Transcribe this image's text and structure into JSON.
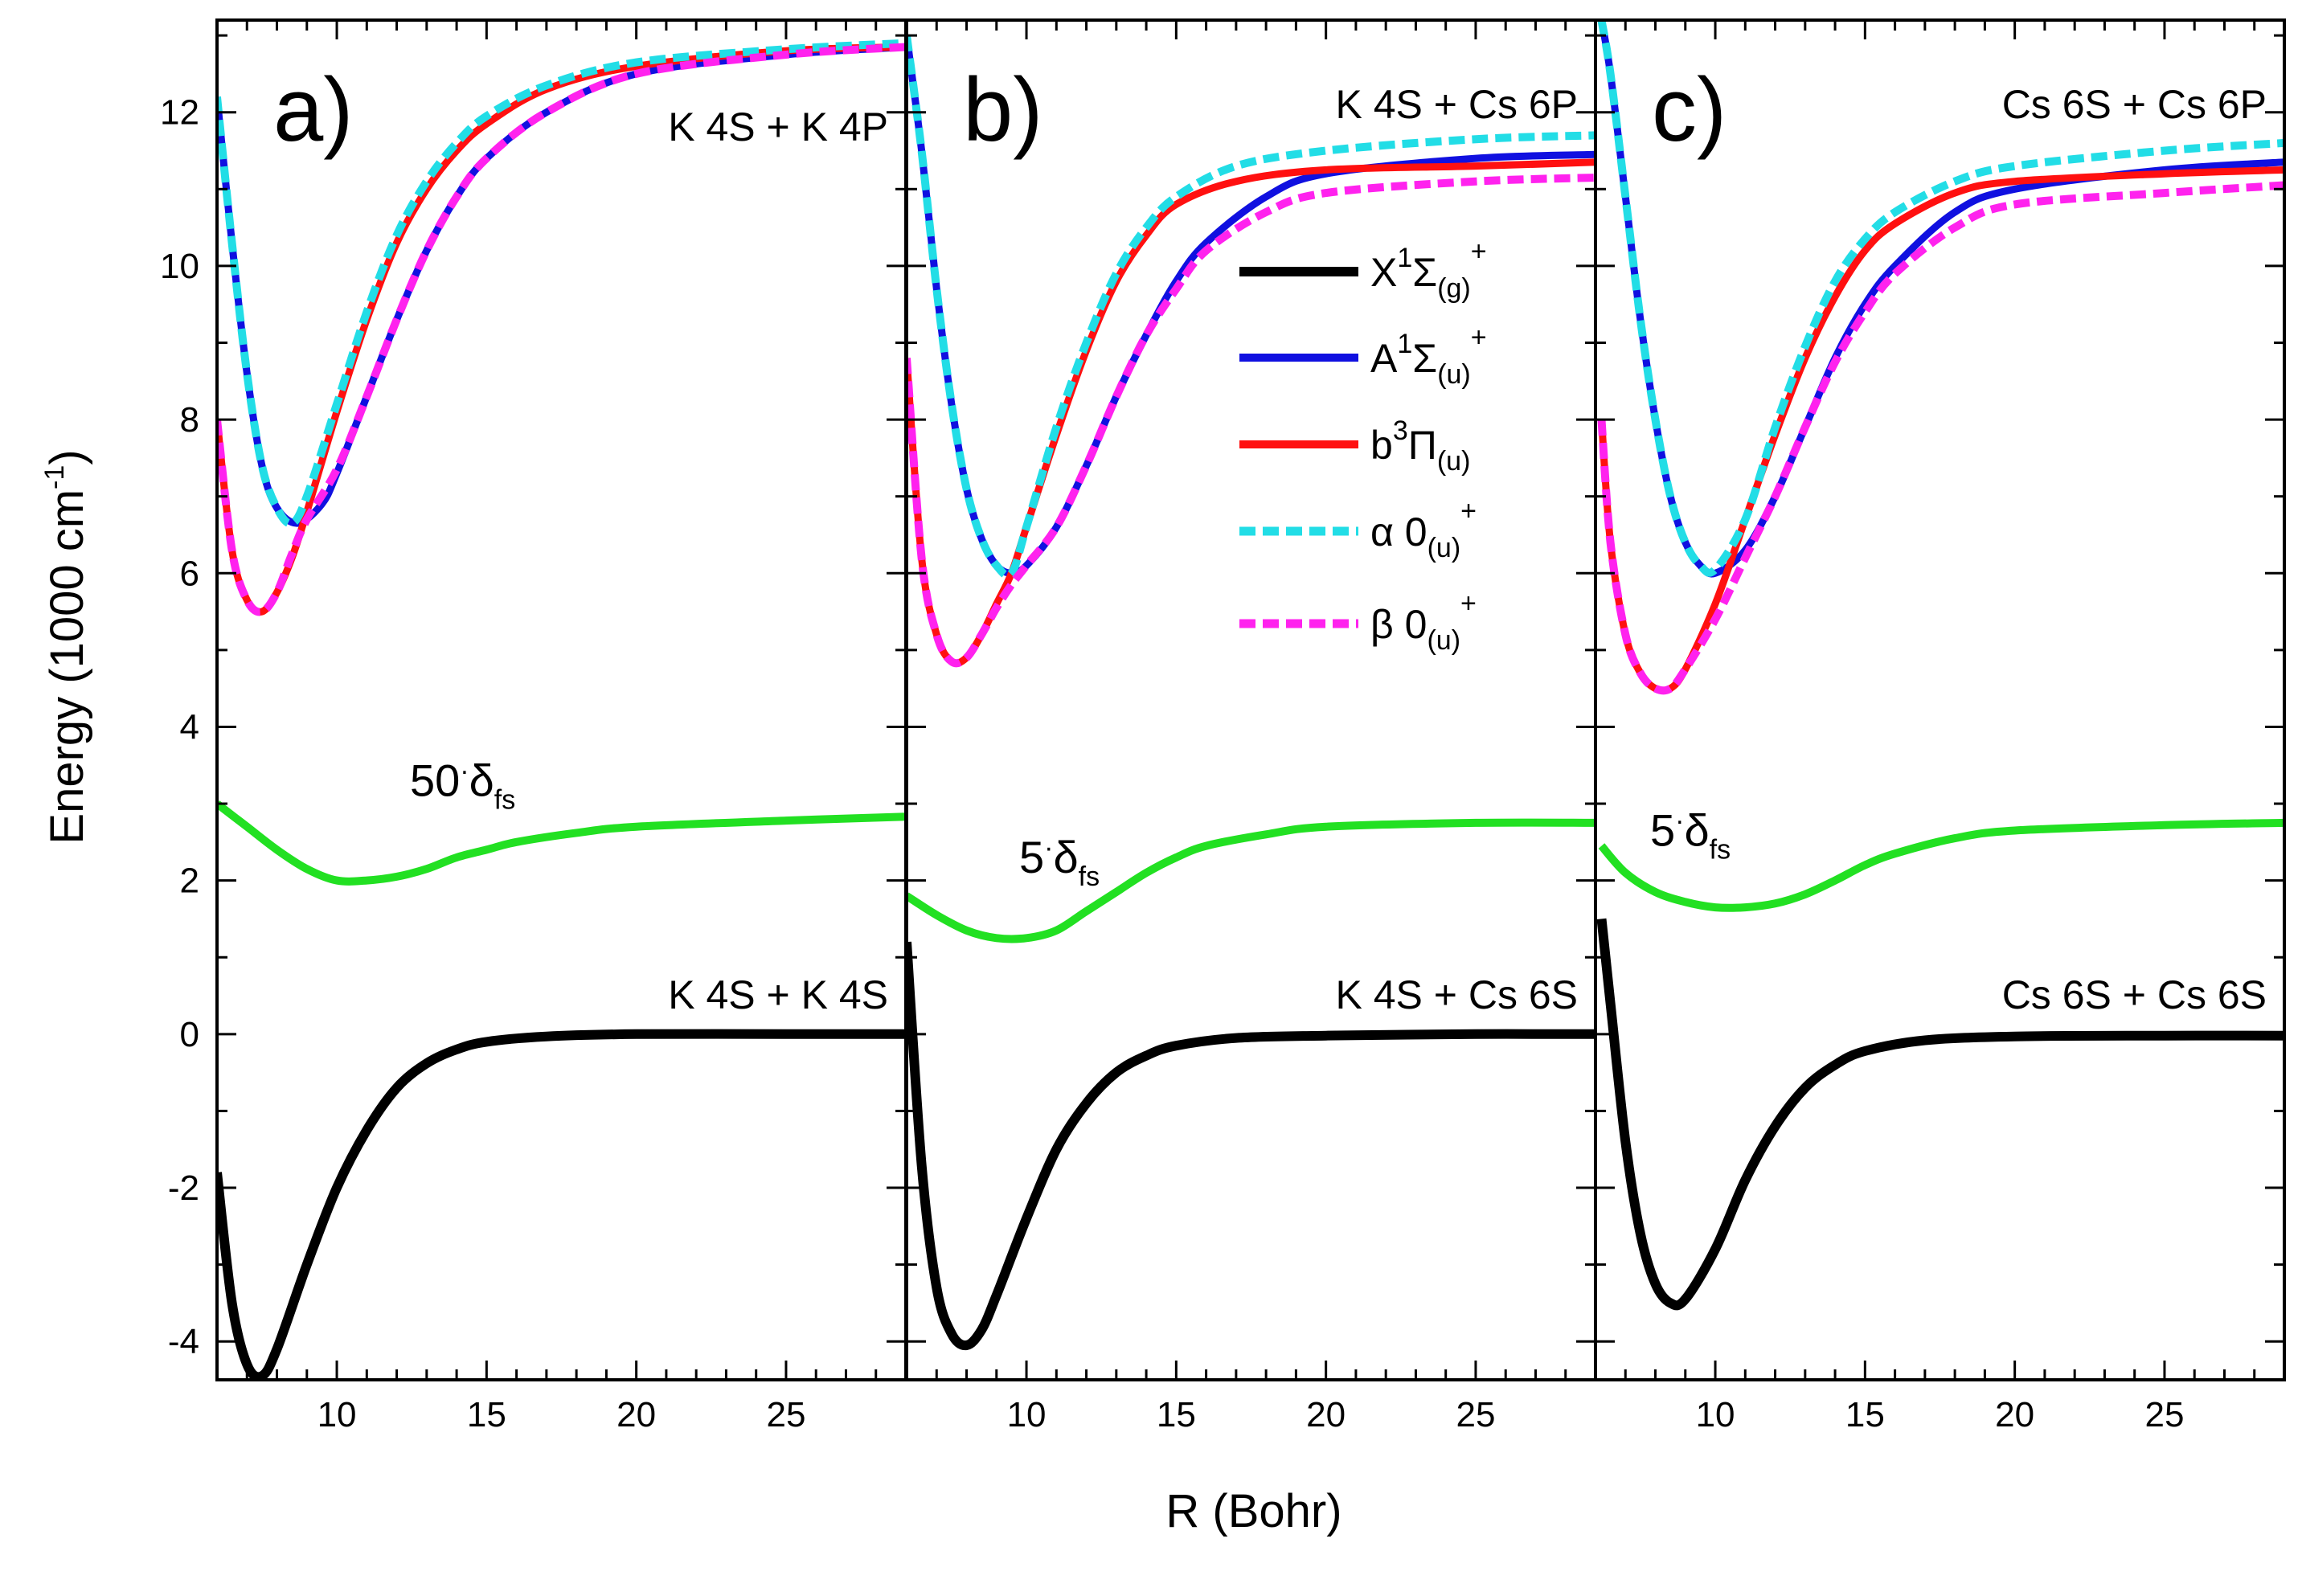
{
  "chart_data": {
    "type": "line",
    "x_axis": {
      "label": "R (Bohr)",
      "range": [
        6,
        29
      ],
      "major_ticks": [
        10,
        15,
        20,
        25
      ],
      "minor_step": 1
    },
    "y_axis": {
      "label_main": "Energy (1000 cm",
      "label_sup": "-1",
      "label_close": ")",
      "range": [
        -4.5,
        13.2
      ],
      "major_ticks": [
        -4,
        -2,
        0,
        2,
        4,
        6,
        8,
        10,
        12
      ],
      "tick_labels": [
        "-4",
        "-2",
        "0",
        "2",
        "4",
        "6",
        "8",
        "10",
        "12"
      ]
    },
    "legend": {
      "placement": "inside panel b, upper-middle",
      "entries": [
        {
          "key": "X",
          "main": "X",
          "sup1": "1",
          "sym": "Σ",
          "sub": "(g)",
          "sup2": "+",
          "color": "#000000",
          "dash": "solid"
        },
        {
          "key": "A",
          "main": "A",
          "sup1": "1",
          "sym": "Σ",
          "sub": "(u)",
          "sup2": "+",
          "color": "#1010e0",
          "dash": "solid"
        },
        {
          "key": "b",
          "main": "b",
          "sup1": "3",
          "sym": "Π",
          "sub": "(u)",
          "sup2": "",
          "color": "#ff1010",
          "dash": "solid"
        },
        {
          "key": "alpha",
          "main": "α 0",
          "sup1": "",
          "sym": "",
          "sub": "(u)",
          "sup2": "+",
          "color": "#22dde6",
          "dash": "dash"
        },
        {
          "key": "beta",
          "main": "β 0",
          "sup1": "",
          "sym": "",
          "sub": "(u)",
          "sup2": "+",
          "color": "#ff22ee",
          "dash": "dash"
        }
      ]
    },
    "panels": [
      {
        "id": "a",
        "letter": "a)",
        "upper_asymptote": "K 4S + K 4P",
        "lower_asymptote": "K 4S + K 4S",
        "fs_prefix": "50",
        "fs_symbol": "δ",
        "fs_sub": "fs",
        "curves": {
          "X": {
            "x": [
              6,
              6.5,
              7,
              7.5,
              8,
              9,
              10,
              11,
              12,
              13,
              14,
              15,
              17,
              20,
              25,
              29
            ],
            "y": [
              -1.8,
              -3.5,
              -4.3,
              -4.45,
              -4.1,
              -3.0,
              -2.0,
              -1.25,
              -0.7,
              -0.38,
              -0.2,
              -0.1,
              -0.03,
              0,
              0,
              0
            ]
          },
          "A": {
            "x": [
              6,
              6.5,
              7,
              7.5,
              8,
              8.7,
              9.5,
              10,
              11,
              12,
              13,
              14,
              15,
              17,
              20,
              25,
              29
            ],
            "y": [
              12.2,
              10.3,
              8.6,
              7.4,
              6.85,
              6.65,
              6.9,
              7.3,
              8.3,
              9.3,
              10.2,
              10.9,
              11.4,
              12.0,
              12.5,
              12.75,
              12.85
            ]
          },
          "b": {
            "x": [
              6,
              6.5,
              7,
              7.5,
              8,
              8.5,
              9,
              10,
              11,
              12,
              13,
              14,
              15,
              17,
              20,
              25,
              29
            ],
            "y": [
              8.0,
              6.3,
              5.65,
              5.5,
              5.75,
              6.2,
              6.8,
              8.1,
              9.3,
              10.3,
              11.0,
              11.5,
              11.85,
              12.3,
              12.6,
              12.8,
              12.85
            ]
          },
          "alpha": {
            "x": [
              6,
              6.5,
              7,
              7.5,
              8,
              8.5,
              9,
              10,
              11,
              12,
              13,
              14,
              15,
              17,
              20,
              25,
              29
            ],
            "y": [
              12.2,
              10.3,
              8.6,
              7.4,
              6.85,
              6.65,
              7.0,
              8.2,
              9.4,
              10.4,
              11.1,
              11.6,
              11.95,
              12.35,
              12.65,
              12.82,
              12.9
            ]
          },
          "beta": {
            "x": [
              6,
              6.5,
              7,
              7.5,
              8,
              8.5,
              9,
              10,
              11,
              12,
              13,
              14,
              15,
              17,
              20,
              25,
              29
            ],
            "y": [
              8.0,
              6.3,
              5.65,
              5.5,
              5.75,
              6.25,
              6.7,
              7.35,
              8.3,
              9.3,
              10.2,
              10.9,
              11.4,
              12.0,
              12.5,
              12.75,
              12.85
            ]
          },
          "fs": {
            "x": [
              6,
              7,
              8,
              9,
              10,
              11,
              12,
              13,
              14,
              15,
              16,
              18,
              20,
              25,
              29
            ],
            "y": [
              3.0,
              2.7,
              2.4,
              2.15,
              2.0,
              2.0,
              2.05,
              2.15,
              2.3,
              2.4,
              2.5,
              2.62,
              2.7,
              2.78,
              2.83
            ]
          }
        }
      },
      {
        "id": "b",
        "letter": "b)",
        "upper_asymptote": "K 4S + Cs 6P",
        "lower_asymptote": "K 4S + Cs 6S",
        "fs_prefix": "5",
        "fs_symbol": "δ",
        "fs_sub": "fs",
        "curves": {
          "X": {
            "x": [
              6,
              6.5,
              7,
              7.5,
              8,
              8.5,
              9,
              10,
              11,
              12,
              13,
              14,
              15,
              17,
              20,
              25,
              29
            ],
            "y": [
              1.2,
              -1.7,
              -3.3,
              -3.9,
              -4.05,
              -3.85,
              -3.4,
              -2.4,
              -1.5,
              -0.9,
              -0.5,
              -0.28,
              -0.15,
              -0.05,
              -0.02,
              0,
              0
            ]
          },
          "A": {
            "x": [
              6,
              6.5,
              7,
              7.5,
              8,
              8.5,
              9,
              9.5,
              10,
              11,
              12,
              13,
              14,
              15,
              16,
              18,
              20,
              25,
              29
            ],
            "y": [
              13.0,
              11.5,
              9.7,
              8.2,
              7.1,
              6.45,
              6.1,
              6.0,
              6.1,
              6.6,
              7.4,
              8.3,
              9.1,
              9.8,
              10.3,
              10.9,
              11.2,
              11.4,
              11.45
            ]
          },
          "b": {
            "x": [
              6,
              6.5,
              7,
              7.5,
              8,
              8.5,
              9,
              9.5,
              10,
              11,
              12,
              13,
              14,
              15,
              17,
              20,
              25,
              29
            ],
            "y": [
              8.8,
              6.2,
              5.2,
              4.85,
              4.9,
              5.2,
              5.6,
              6.0,
              6.6,
              7.8,
              8.9,
              9.8,
              10.4,
              10.8,
              11.1,
              11.25,
              11.3,
              11.35
            ]
          },
          "alpha": {
            "x": [
              6,
              6.5,
              7,
              7.5,
              8,
              8.5,
              9,
              9.5,
              10,
              11,
              12,
              13,
              14,
              15,
              17,
              20,
              25,
              29
            ],
            "y": [
              13.0,
              11.5,
              9.7,
              8.2,
              7.1,
              6.45,
              6.1,
              6.0,
              6.6,
              7.9,
              9.0,
              9.9,
              10.5,
              10.9,
              11.3,
              11.5,
              11.65,
              11.7
            ]
          },
          "beta": {
            "x": [
              6,
              6.5,
              7,
              7.5,
              8,
              8.5,
              9,
              9.5,
              10,
              11,
              12,
              13,
              14,
              15,
              16,
              18,
              20,
              25,
              29
            ],
            "y": [
              8.8,
              6.2,
              5.2,
              4.85,
              4.9,
              5.2,
              5.55,
              5.85,
              6.1,
              6.6,
              7.4,
              8.3,
              9.1,
              9.7,
              10.2,
              10.7,
              10.95,
              11.1,
              11.15
            ]
          },
          "fs": {
            "x": [
              6,
              7,
              8,
              9,
              10,
              11,
              12,
              13,
              14,
              15,
              16,
              18,
              20,
              25,
              29
            ],
            "y": [
              1.8,
              1.55,
              1.35,
              1.25,
              1.25,
              1.35,
              1.6,
              1.85,
              2.1,
              2.3,
              2.45,
              2.6,
              2.7,
              2.75,
              2.75
            ]
          }
        }
      },
      {
        "id": "c",
        "letter": "c)",
        "upper_asymptote": "Cs 6S + Cs 6P",
        "lower_asymptote": "Cs 6S + Cs 6S",
        "fs_prefix": "5",
        "fs_symbol": "δ",
        "fs_sub": "fs",
        "curves": {
          "X": {
            "x": [
              6.2,
              6.5,
              7,
              7.5,
              8,
              8.5,
              9,
              10,
              11,
              12,
              13,
              14,
              15,
              17,
              20,
              25,
              29
            ],
            "y": [
              1.5,
              0.4,
              -1.4,
              -2.6,
              -3.25,
              -3.5,
              -3.45,
              -2.8,
              -1.9,
              -1.2,
              -0.7,
              -0.4,
              -0.22,
              -0.08,
              -0.03,
              -0.02,
              -0.02
            ]
          },
          "A": {
            "x": [
              6.2,
              6.5,
              7,
              7.5,
              8,
              8.5,
              9,
              9.5,
              10,
              11,
              12,
              13,
              14,
              15,
              16,
              18,
              20,
              25,
              29
            ],
            "y": [
              13.2,
              12.5,
              10.9,
              9.3,
              8.0,
              7.0,
              6.4,
              6.1,
              6.0,
              6.3,
              7.0,
              7.9,
              8.8,
              9.5,
              10.0,
              10.7,
              11.0,
              11.25,
              11.35
            ]
          },
          "b": {
            "x": [
              6.2,
              6.5,
              7,
              7.5,
              8,
              8.5,
              9,
              10,
              11,
              12,
              13,
              14,
              15,
              16,
              18,
              20,
              25,
              29
            ],
            "y": [
              8.0,
              6.4,
              5.2,
              4.7,
              4.5,
              4.5,
              4.75,
              5.6,
              6.7,
              7.8,
              8.8,
              9.6,
              10.2,
              10.55,
              10.95,
              11.1,
              11.2,
              11.25
            ]
          },
          "alpha": {
            "x": [
              6.2,
              6.5,
              7,
              7.5,
              8,
              8.5,
              9,
              9.5,
              10,
              11,
              12,
              13,
              14,
              15,
              16,
              18,
              20,
              25,
              29
            ],
            "y": [
              13.2,
              12.5,
              10.9,
              9.3,
              8.0,
              7.0,
              6.4,
              6.1,
              6.05,
              6.7,
              7.9,
              8.95,
              9.8,
              10.35,
              10.7,
              11.1,
              11.3,
              11.5,
              11.6
            ]
          },
          "beta": {
            "x": [
              6.2,
              6.5,
              7,
              7.5,
              8,
              8.5,
              9,
              10,
              11,
              12,
              13,
              14,
              15,
              16,
              18,
              20,
              25,
              29
            ],
            "y": [
              8.0,
              6.4,
              5.2,
              4.7,
              4.5,
              4.5,
              4.75,
              5.4,
              6.2,
              7.0,
              7.9,
              8.75,
              9.4,
              9.9,
              10.5,
              10.8,
              10.95,
              11.05
            ]
          },
          "fs": {
            "x": [
              6.2,
              7,
              8,
              9,
              10,
              11,
              12,
              13,
              14,
              15,
              16,
              18,
              20,
              25,
              29
            ],
            "y": [
              2.45,
              2.1,
              1.85,
              1.72,
              1.65,
              1.65,
              1.7,
              1.82,
              2.0,
              2.2,
              2.35,
              2.55,
              2.65,
              2.72,
              2.75
            ]
          }
        }
      }
    ]
  }
}
